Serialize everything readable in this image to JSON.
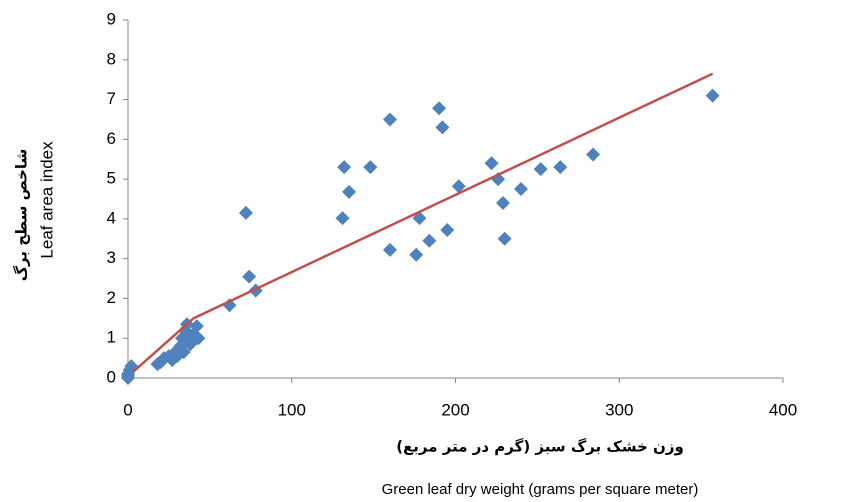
{
  "chart_data": {
    "type": "scatter",
    "xlabel": [
      "وزن خشک برگ سبز (گرم در متر مربع)",
      "Green leaf dry weight (grams per square meter)"
    ],
    "ylabel": [
      "شاخص سطح برگ",
      "Leaf area index"
    ],
    "xlim": [
      0,
      400
    ],
    "xticks": [
      0,
      100,
      200,
      300,
      400
    ],
    "ylim": [
      0,
      9
    ],
    "yticks": [
      0,
      1,
      2,
      3,
      4,
      5,
      6,
      7,
      8,
      9
    ],
    "grid": false,
    "color": "#4f81bd",
    "x": [
      0,
      0,
      1,
      2,
      0,
      18,
      20,
      22,
      25,
      28,
      30,
      32,
      33,
      35,
      36,
      38,
      40,
      42,
      43,
      27,
      30,
      34,
      38,
      40,
      36,
      62,
      72,
      74,
      78,
      131,
      132,
      135,
      148,
      160,
      160,
      176,
      178,
      184,
      190,
      192,
      195,
      202,
      222,
      226,
      229,
      230,
      240,
      252,
      264,
      284,
      357
    ],
    "values": [
      0.05,
      0.1,
      0.2,
      0.3,
      0.0,
      0.35,
      0.4,
      0.5,
      0.55,
      0.6,
      0.7,
      0.8,
      1.0,
      1.2,
      1.35,
      0.9,
      1.1,
      1.3,
      1.0,
      0.45,
      0.55,
      0.65,
      0.85,
      0.95,
      1.15,
      1.83,
      4.15,
      2.55,
      2.2,
      4.02,
      5.3,
      4.68,
      5.3,
      6.5,
      3.22,
      3.1,
      4.02,
      3.45,
      6.78,
      6.3,
      3.72,
      4.82,
      5.4,
      5.0,
      4.4,
      3.5,
      4.75,
      5.25,
      5.3,
      5.62,
      7.1
    ],
    "trend": {
      "color": "#c0504d",
      "x": [
        3,
        40,
        357
      ],
      "values": [
        0.15,
        1.5,
        7.65
      ]
    }
  }
}
